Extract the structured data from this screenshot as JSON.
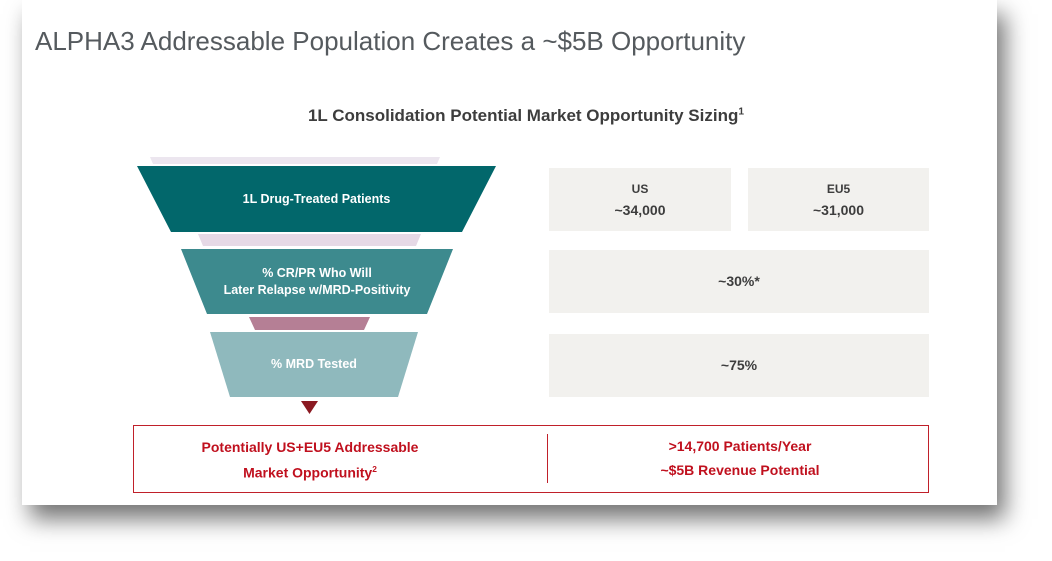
{
  "title": "ALPHA3 Addressable Population Creates a ~$5B Opportunity",
  "subtitle": {
    "text": "1L Consolidation Potential Market Opportunity Sizing",
    "sup": "1"
  },
  "funnel": [
    {
      "label": "1L Drug-Treated Patients",
      "color": "#02676b"
    },
    {
      "label_line1": "% CR/PR Who Will",
      "label_line2": "Later Relapse w/MRD-Positivity",
      "color": "#3d8a8e"
    },
    {
      "label": "% MRD Tested",
      "color": "#8fb9bd"
    }
  ],
  "values": {
    "us_label": "US",
    "us_value": "~34,000",
    "eu_label": "EU5",
    "eu_value": "~31,000",
    "relapse_value": "~30%*",
    "mrd_value": "~75%"
  },
  "summary": {
    "left_line1": "Potentially US+EU5 Addressable",
    "left_line2": "Market Opportunity",
    "left_sup": "2",
    "right_line1": ">14,700 Patients/Year",
    "right_line2": "~$5B Revenue Potential"
  },
  "colors": {
    "accent_red": "#c0101e",
    "arrow": "#8b1a22"
  }
}
